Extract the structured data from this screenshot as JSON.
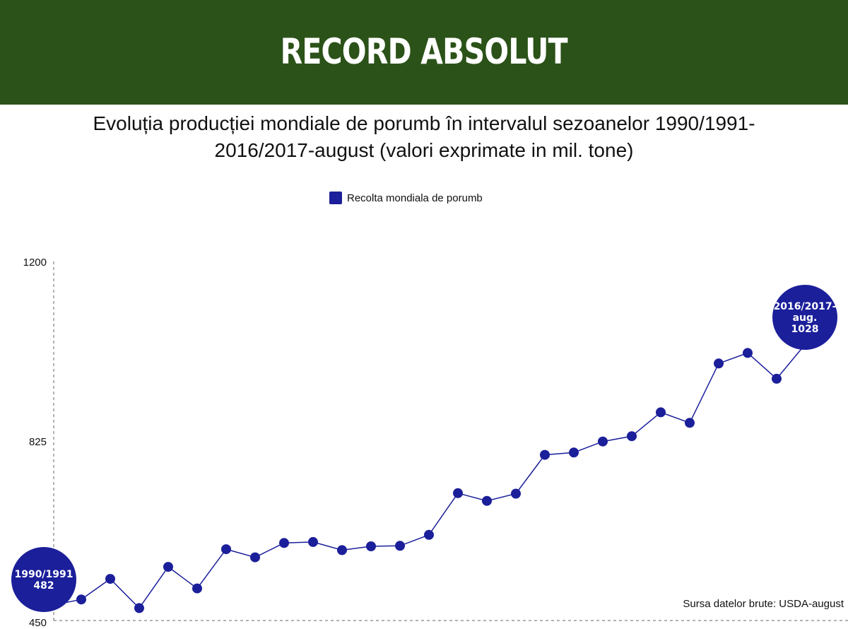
{
  "header": {
    "title": "RECORD ABSOLUT"
  },
  "chart_title": {
    "line1": "Evoluția producției mondiale de porumb în intervalul sezoanelor 1990/1991-",
    "line2": "2016/2017-august (valori exprimate in mil. tone)"
  },
  "source": "Sursa datelor brute: USDA-august",
  "colors": {
    "banner": "#2b5218",
    "series": "#1b1f9a"
  },
  "chart_data": {
    "type": "line",
    "series": [
      {
        "name": "Recolta mondiala de porumb",
        "values": [
          482,
          494,
          537,
          476,
          562,
          517,
          599,
          582,
          612,
          614,
          597,
          605,
          606,
          629,
          716,
          700,
          715,
          796,
          801,
          824,
          835,
          885,
          863,
          987,
          1009,
          955,
          1028
        ]
      }
    ],
    "x_count": 27,
    "yticks": [
      "1200",
      "825",
      "450"
    ],
    "ylim": [
      450,
      1200
    ],
    "grid": false,
    "legend_position": "top-center",
    "annotations": {
      "first": {
        "lines": [
          "1990/1991",
          "482"
        ]
      },
      "last": {
        "lines": [
          "2016/2017-",
          "aug.",
          "1028"
        ]
      }
    }
  }
}
